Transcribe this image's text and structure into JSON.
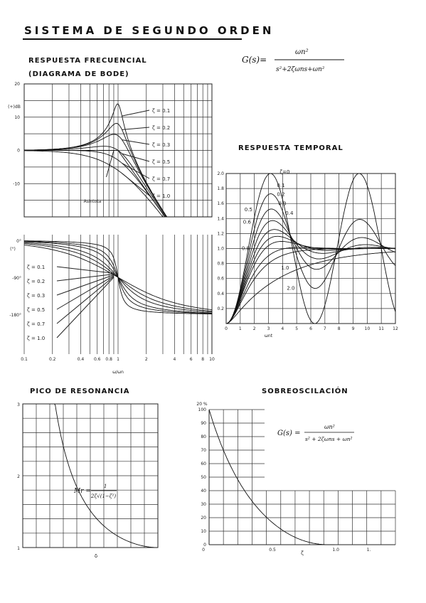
{
  "page": {
    "title": "SISTEMA DE SEGUNDO ORDEN",
    "bode_title_1": "RESPUESTA FRECUENCIAL",
    "bode_title_2": "(DIAGRAMA DE BODE)",
    "temporal_title": "RESPUESTA TEMPORAL",
    "pico_title": "PICO DE RESONANCIA",
    "sobre_title": "SOBREOSCILACIÓN",
    "formula_top": "G(s)= ωn² / (s²+2ζωn s + ωn²)",
    "formula_top_num": "ωn²",
    "formula_top_den": "s²+2ζωns+ωn²",
    "formula_top_lhs": "G(s)=",
    "formula_sobre_lhs": "G(s) =",
    "formula_sobre_num": "ωn²",
    "formula_sobre_den": "s² + 2ζωns + ωn²",
    "formula_pico": "Mr = 1 / (2ζ√(1−ζ²))",
    "formula_pico_lhs": "Mr =",
    "formula_pico_num": "1",
    "formula_pico_den": "2ζ√(1−ζ²)"
  },
  "chart_data": [
    {
      "id": "bode-magnitude",
      "type": "line",
      "x_scale": "log",
      "xlim": [
        0.1,
        10
      ],
      "ylim": [
        -20,
        20
      ],
      "ylabel": "(+)dB",
      "x_ticks": [
        "0.1",
        "0.2",
        "0.4",
        "0.6",
        "0.8",
        "1",
        "2",
        "4",
        "6",
        "8",
        "10"
      ],
      "y_ticks": [
        "20",
        "10",
        "0",
        "-10"
      ],
      "annotation": "Asíntota",
      "series_zetas": [
        0.1,
        0.2,
        0.3,
        0.5,
        0.7,
        1.0
      ],
      "legend": [
        "ζ = 0.1",
        "ζ = 0.2",
        "ζ = 0.3",
        "ζ = 0.5",
        "ζ = 0.7",
        "ζ = 1.0"
      ]
    },
    {
      "id": "bode-phase",
      "type": "line",
      "x_scale": "log",
      "xlim": [
        0.1,
        10
      ],
      "ylim": [
        -180,
        0
      ],
      "ylabel": "(°)",
      "y_ticks": [
        "0°",
        "-90°",
        "-180°"
      ],
      "xlabel": "ω/ωn",
      "series_zetas": [
        0.1,
        0.2,
        0.3,
        0.5,
        0.7,
        1.0
      ],
      "legend": [
        "ζ = 0.1",
        "ζ = 0.2",
        "ζ = 0.3",
        "ζ = 0.5",
        "ζ = 0.7",
        "ζ = 1.0"
      ]
    },
    {
      "id": "step-response",
      "type": "line",
      "xlim": [
        0,
        12
      ],
      "ylim": [
        0,
        2.0
      ],
      "xlabel": "ωnt",
      "x_ticks": [
        "0",
        "1",
        "2",
        "3",
        "4",
        "5",
        "6",
        "7",
        "8",
        "9",
        "10",
        "11",
        "12"
      ],
      "y_ticks": [
        "0.2",
        "0.4",
        "0.6",
        "0.8",
        "1.0",
        "1.2",
        "1.4",
        "1.6",
        "1.8",
        "2.0"
      ],
      "series_zetas": [
        0,
        0.1,
        0.2,
        0.3,
        0.4,
        0.5,
        0.6,
        0.8,
        1.0,
        2.0
      ],
      "curve_labels": [
        "ζ=0",
        "0.1",
        "0.2",
        "0.3",
        "0.4",
        "0.5",
        "0.6",
        "0.8",
        "1.0",
        "2.0"
      ]
    },
    {
      "id": "pico-resonancia",
      "type": "line",
      "xlim": [
        0,
        0.707
      ],
      "ylim": [
        1,
        3
      ],
      "xlabel": "δ",
      "y_ticks": [
        "3",
        "2",
        "1"
      ]
    },
    {
      "id": "sobreoscilacion",
      "type": "line",
      "xlim": [
        0,
        1.0
      ],
      "ylim": [
        0,
        100
      ],
      "ylabel": "20 %",
      "xlabel": "ζ",
      "x_ticks": [
        "0",
        "0.5",
        "1.0",
        "1."
      ],
      "y_ticks": [
        "100",
        "90",
        "80",
        "70",
        "60",
        "50",
        "40",
        "30",
        "20",
        "10",
        "0"
      ]
    }
  ]
}
